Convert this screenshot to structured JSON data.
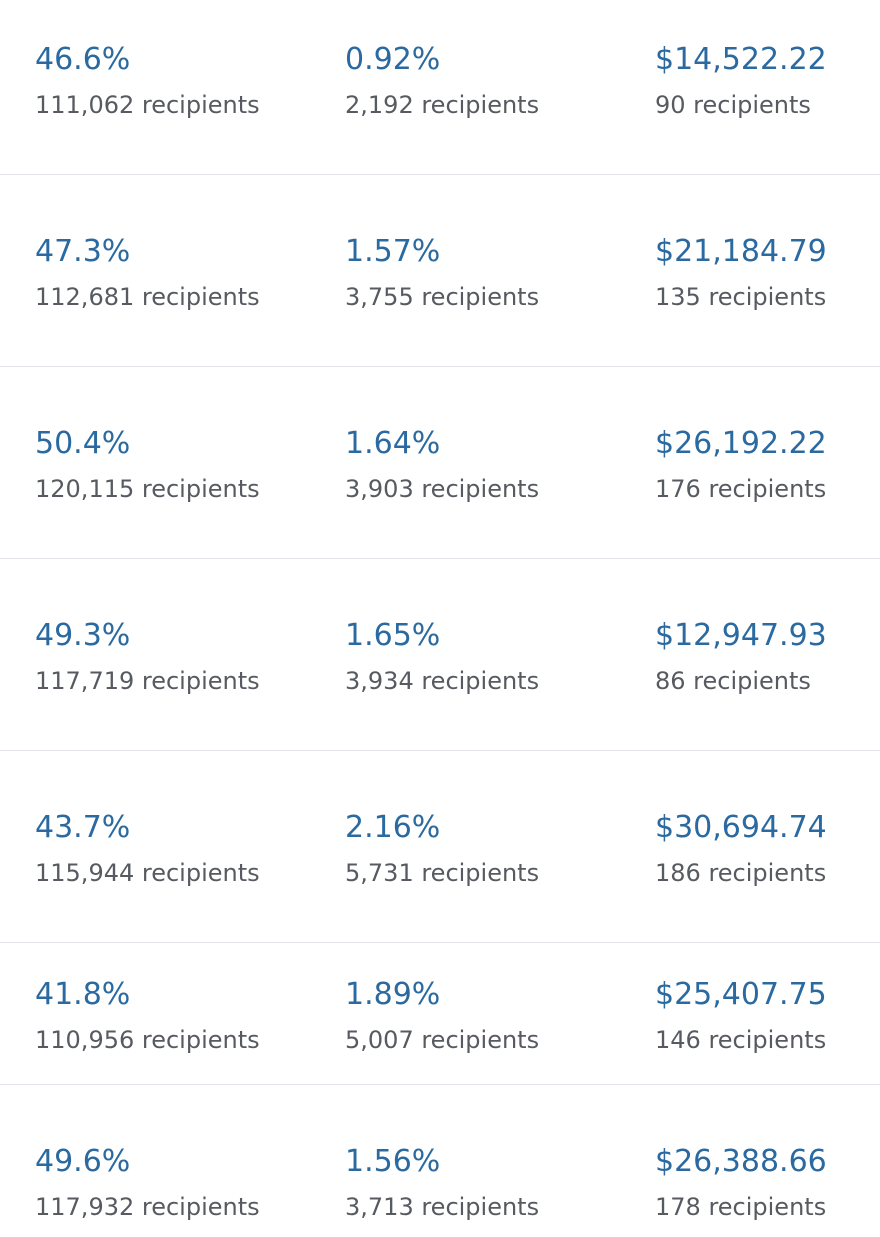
{
  "colors": {
    "value": "#2b6aa0",
    "recipients": "#575b61",
    "divider": "#e2e5ea",
    "background": "#ffffff"
  },
  "rows": [
    {
      "open_rate": {
        "value": "46.6%",
        "recipients": "111,062 recipients"
      },
      "click_rate": {
        "value": "0.92%",
        "recipients": "2,192 recipients"
      },
      "revenue": {
        "value": "$14,522.22",
        "recipients": "90 recipients"
      }
    },
    {
      "open_rate": {
        "value": "47.3%",
        "recipients": "112,681 recipients"
      },
      "click_rate": {
        "value": "1.57%",
        "recipients": "3,755 recipients"
      },
      "revenue": {
        "value": "$21,184.79",
        "recipients": "135 recipients"
      }
    },
    {
      "open_rate": {
        "value": "50.4%",
        "recipients": "120,115 recipients"
      },
      "click_rate": {
        "value": "1.64%",
        "recipients": "3,903 recipients"
      },
      "revenue": {
        "value": "$26,192.22",
        "recipients": "176 recipients"
      }
    },
    {
      "open_rate": {
        "value": "49.3%",
        "recipients": "117,719 recipients"
      },
      "click_rate": {
        "value": "1.65%",
        "recipients": "3,934 recipients"
      },
      "revenue": {
        "value": "$12,947.93",
        "recipients": "86 recipients"
      }
    },
    {
      "open_rate": {
        "value": "43.7%",
        "recipients": "115,944 recipients"
      },
      "click_rate": {
        "value": "2.16%",
        "recipients": "5,731 recipients"
      },
      "revenue": {
        "value": "$30,694.74",
        "recipients": "186 recipients"
      }
    },
    {
      "open_rate": {
        "value": "41.8%",
        "recipients": "110,956 recipients"
      },
      "click_rate": {
        "value": "1.89%",
        "recipients": "5,007 recipients"
      },
      "revenue": {
        "value": "$25,407.75",
        "recipients": "146 recipients"
      }
    },
    {
      "open_rate": {
        "value": "49.6%",
        "recipients": "117,932 recipients"
      },
      "click_rate": {
        "value": "1.56%",
        "recipients": "3,713 recipients"
      },
      "revenue": {
        "value": "$26,388.66",
        "recipients": "178 recipients"
      }
    }
  ]
}
